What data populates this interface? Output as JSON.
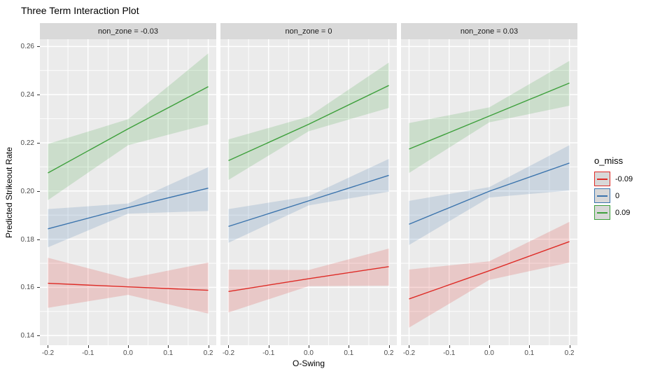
{
  "chart_data": {
    "type": "line",
    "title": "Three Term Interaction Plot",
    "xlabel": "O-Swing",
    "ylabel": "Predicted Strikeout Rate",
    "xlim": [
      -0.22,
      0.22
    ],
    "ylim": [
      0.136,
      0.263
    ],
    "grid": true,
    "legend_position": "right",
    "x_major": [
      -0.2,
      -0.1,
      0.0,
      0.1,
      0.2
    ],
    "x_minor": [
      -0.15,
      -0.05,
      0.05,
      0.15
    ],
    "x_tick_labels": [
      "-0.2",
      "-0.1",
      "0.0",
      "0.1",
      "0.2"
    ],
    "y_major": [
      0.14,
      0.16,
      0.18,
      0.2,
      0.22,
      0.24,
      0.26
    ],
    "y_minor": [
      0.15,
      0.17,
      0.19,
      0.21,
      0.23,
      0.25
    ],
    "y_tick_labels": [
      "0.14",
      "0.16",
      "0.18",
      "0.20",
      "0.22",
      "0.24",
      "0.26"
    ],
    "x": [
      -0.2,
      0.0,
      0.2
    ],
    "colors": {
      "panel_bg": "#EBEBEB",
      "strip_bg": "#D9D9D9",
      "gridline": "#FFFFFF",
      "tick_text": "#4D4D4D",
      "red": "#DE2B26",
      "blue": "#3B74AD",
      "green": "#3EA03C"
    },
    "legend": {
      "title": "o_miss",
      "entries": [
        {
          "label": "-0.09",
          "color": "#DE2B26"
        },
        {
          "label": "0",
          "color": "#3B74AD"
        },
        {
          "label": "0.09",
          "color": "#3EA03C"
        }
      ]
    },
    "facets": [
      {
        "label": "non_zone = -0.03",
        "series": [
          {
            "name": "-0.09",
            "color": "#DE2B26",
            "line": [
              0.1617,
              0.1602,
              0.1588
            ],
            "upper": [
              0.1723,
              0.1636,
              0.1703
            ],
            "lower": [
              0.1515,
              0.1569,
              0.1491
            ]
          },
          {
            "name": "0",
            "color": "#3B74AD",
            "line": [
              0.1843,
              0.1931,
              0.2012
            ],
            "upper": [
              0.1925,
              0.1948,
              0.2099
            ],
            "lower": [
              0.1766,
              0.1906,
              0.1917
            ]
          },
          {
            "name": "0.09",
            "color": "#3EA03C",
            "line": [
              0.2075,
              0.2258,
              0.2433
            ],
            "upper": [
              0.2195,
              0.2298,
              0.2571
            ],
            "lower": [
              0.1962,
              0.219,
              0.2277
            ]
          }
        ]
      },
      {
        "label": "non_zone = 0",
        "series": [
          {
            "name": "-0.09",
            "color": "#DE2B26",
            "line": [
              0.1583,
              0.1636,
              0.1686
            ],
            "upper": [
              0.1674,
              0.1672,
              0.1761
            ],
            "lower": [
              0.1496,
              0.1605,
              0.1607
            ]
          },
          {
            "name": "0",
            "color": "#3B74AD",
            "line": [
              0.1853,
              0.1959,
              0.2065
            ],
            "upper": [
              0.1925,
              0.1978,
              0.2133
            ],
            "lower": [
              0.1785,
              0.194,
              0.1997
            ]
          },
          {
            "name": "0.09",
            "color": "#3EA03C",
            "line": [
              0.2126,
              0.2277,
              0.2438
            ],
            "upper": [
              0.2214,
              0.2309,
              0.2533
            ],
            "lower": [
              0.2046,
              0.2248,
              0.2345
            ]
          }
        ]
      },
      {
        "label": "non_zone = 0.03",
        "series": [
          {
            "name": "-0.09",
            "color": "#DE2B26",
            "line": [
              0.1552,
              0.1669,
              0.179
            ],
            "upper": [
              0.1674,
              0.1708,
              0.1872
            ],
            "lower": [
              0.1433,
              0.1631,
              0.1703
            ]
          },
          {
            "name": "0",
            "color": "#3B74AD",
            "line": [
              0.1862,
              0.1999,
              0.2116
            ],
            "upper": [
              0.1959,
              0.2016,
              0.219
            ],
            "lower": [
              0.1776,
              0.1973,
              0.2002
            ]
          },
          {
            "name": "0.09",
            "color": "#3EA03C",
            "line": [
              0.2174,
              0.2311,
              0.2448
            ],
            "upper": [
              0.2282,
              0.2347,
              0.254
            ],
            "lower": [
              0.2075,
              0.2285,
              0.2354
            ]
          }
        ]
      }
    ]
  }
}
